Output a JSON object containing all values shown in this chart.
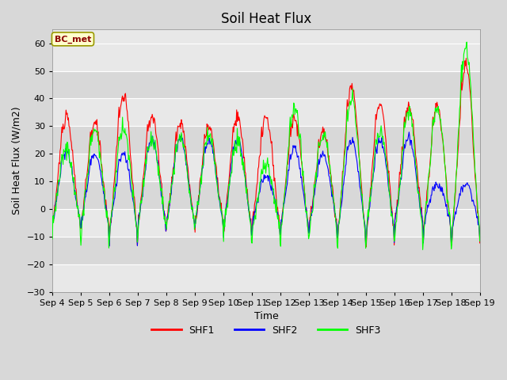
{
  "title": "Soil Heat Flux",
  "ylabel": "Soil Heat Flux (W/m2)",
  "xlabel": "Time",
  "ylim": [
    -30,
    65
  ],
  "yticks": [
    -30,
    -20,
    -10,
    0,
    10,
    20,
    30,
    40,
    50,
    60
  ],
  "line_colors": [
    "red",
    "blue",
    "lime"
  ],
  "legend_labels": [
    "SHF1",
    "SHF2",
    "SHF3"
  ],
  "annotation_text": "BC_met",
  "annotation_color": "#8b0000",
  "annotation_bg": "#ffffcc",
  "annotation_edge": "#999900",
  "n_days": 15,
  "start_day": 4,
  "fig_bg": "#d8d8d8",
  "plot_bg_light": "#e8e8e8",
  "plot_bg_dark": "#d0d0d0",
  "band_colors": [
    "#e8e8e8",
    "#d8d8d8"
  ],
  "title_fontsize": 12,
  "label_fontsize": 9,
  "tick_fontsize": 8
}
